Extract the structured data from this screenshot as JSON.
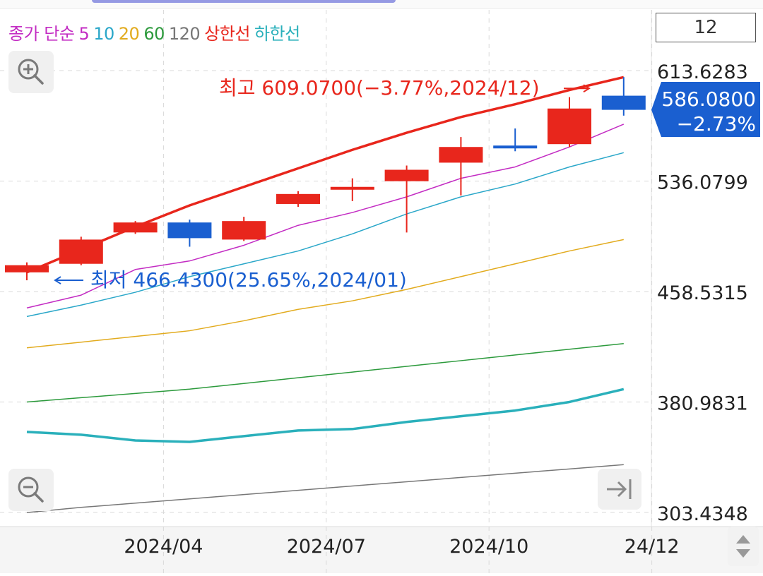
{
  "legend": {
    "items": [
      {
        "label": "종가 단순",
        "color": "#c32cc3"
      },
      {
        "label": "5",
        "color": "#c32cc3"
      },
      {
        "label": "10",
        "color": "#2aa7c9"
      },
      {
        "label": "20",
        "color": "#e2ab1e"
      },
      {
        "label": "60",
        "color": "#2c9a3c"
      },
      {
        "label": "120",
        "color": "#777777"
      },
      {
        "label": "상한선",
        "color": "#e8261c"
      },
      {
        "label": "하한선",
        "color": "#2ab0bb"
      }
    ]
  },
  "period_value": "12",
  "colors": {
    "up": "#e8261c",
    "down": "#1a5fd0",
    "grid": "#d9d9d9",
    "axis_text": "#222222",
    "bottom_bar": "#f5f5f5",
    "icon": "#7a7a7a"
  },
  "chart_data": {
    "type": "candlestick",
    "ylim": [
      303.4348,
      613.6283
    ],
    "y_ticks": [
      {
        "value": 613.6283,
        "label": "613.6283"
      },
      {
        "value": 536.0799,
        "label": "536.0799"
      },
      {
        "value": 458.5315,
        "label": "458.5315"
      },
      {
        "value": 380.9831,
        "label": "380.9831"
      },
      {
        "value": 303.4348,
        "label": "303.4348"
      }
    ],
    "x_labels": [
      {
        "index": 3,
        "label": "2024/04"
      },
      {
        "index": 6,
        "label": "2024/07"
      },
      {
        "index": 9,
        "label": "2024/10"
      },
      {
        "index": 12,
        "label": "24/12"
      }
    ],
    "candles": [
      {
        "period": "2024/01",
        "open": 472,
        "high": 479,
        "low": 466.43,
        "close": 477
      },
      {
        "period": "2024/02",
        "open": 478,
        "high": 497,
        "low": 477,
        "close": 495
      },
      {
        "period": "2024/03",
        "open": 500,
        "high": 508,
        "low": 499,
        "close": 507
      },
      {
        "period": "2024/04",
        "open": 507,
        "high": 509,
        "low": 490,
        "close": 496
      },
      {
        "period": "2024/05",
        "open": 495,
        "high": 511,
        "low": 494,
        "close": 508
      },
      {
        "period": "2024/06",
        "open": 520,
        "high": 529,
        "low": 518,
        "close": 527
      },
      {
        "period": "2024/07",
        "open": 530,
        "high": 538,
        "low": 522,
        "close": 532
      },
      {
        "period": "2024/08",
        "open": 536,
        "high": 547,
        "low": 500,
        "close": 544
      },
      {
        "period": "2024/09",
        "open": 549,
        "high": 567,
        "low": 526,
        "close": 560
      },
      {
        "period": "2024/10",
        "open": 561,
        "high": 573,
        "low": 557,
        "close": 559
      },
      {
        "period": "2024/11",
        "open": 562,
        "high": 595,
        "low": 560,
        "close": 587
      },
      {
        "period": "2024/12",
        "open": 596,
        "high": 609.07,
        "low": 582,
        "close": 586.08
      }
    ],
    "series": [
      {
        "name": "5",
        "color": "#c32cc3",
        "width": 1.5,
        "values": [
          447,
          456,
          474,
          480,
          491,
          505,
          514,
          525,
          538,
          546,
          560,
          576
        ]
      },
      {
        "name": "10",
        "color": "#2aa7c9",
        "width": 1.5,
        "values": [
          441,
          449,
          458,
          469,
          478,
          487,
          499,
          513,
          525,
          534,
          546,
          556
        ]
      },
      {
        "name": "20",
        "color": "#e2ab1e",
        "width": 1.5,
        "values": [
          419,
          423,
          427,
          431,
          438,
          446,
          452,
          460,
          469,
          478,
          487,
          495
        ]
      },
      {
        "name": "60",
        "color": "#2c9a3c",
        "width": 1.5,
        "values": [
          381,
          384,
          387,
          390,
          394,
          398,
          402,
          406,
          410,
          414,
          418,
          422
        ]
      },
      {
        "name": "120",
        "color": "#777777",
        "width": 1.5,
        "values": [
          303.4,
          307,
          310,
          313,
          316,
          319,
          322,
          325,
          328,
          331,
          334,
          337
        ]
      },
      {
        "name": "상한선",
        "color": "#e8261c",
        "width": 3.5,
        "values": [
          472,
          488,
          504,
          519,
          532,
          545,
          558,
          570,
          581,
          590,
          600,
          609
        ]
      },
      {
        "name": "하한선",
        "color": "#2ab0bb",
        "width": 3.5,
        "values": [
          360,
          358,
          354,
          353,
          357,
          361,
          362,
          367,
          371,
          375,
          381,
          390
        ]
      }
    ],
    "annotations": {
      "high": {
        "text": "최고 609.0700(−3.77%,2024/12)",
        "value": 609.07,
        "index": 12,
        "color": "#e8261c"
      },
      "low": {
        "text": "최저 466.4300(25.65%,2024/01)",
        "value": 466.43,
        "index": 1,
        "color": "#1a5fd0"
      }
    },
    "current": {
      "price": "586.0800",
      "change": "−2.73%",
      "value": 586.08,
      "color": "#1a5fd0"
    }
  }
}
